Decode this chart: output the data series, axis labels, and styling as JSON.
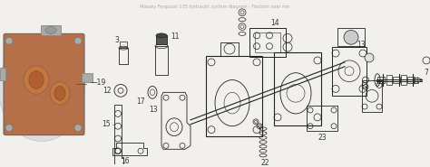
{
  "bg": "#f2f0ed",
  "lc": "#444444",
  "lc2": "#222222",
  "lw": 0.55,
  "fs": 5.5,
  "fc": "#333333",
  "dpi": 100,
  "fig_w": 4.74,
  "fig_h": 1.85
}
